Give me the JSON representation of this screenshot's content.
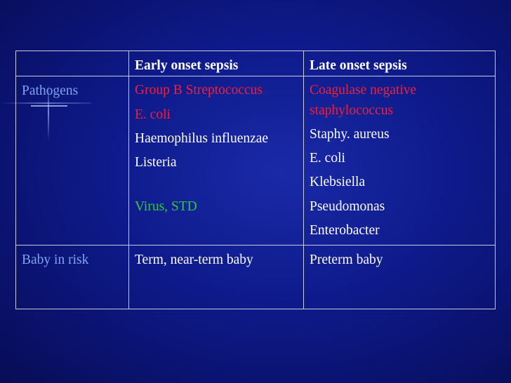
{
  "table": {
    "header": [
      "",
      "Early onset sepsis",
      "Late onset sepsis"
    ],
    "pathogens": {
      "label": "Pathogens",
      "early": [
        {
          "text": "Group B Streptococcus",
          "color": "#f0203a"
        },
        {
          "text": "E. coli",
          "color": "#f0203a"
        },
        {
          "text": "Haemophilus influenzae",
          "color": "#ffffff"
        },
        {
          "text": "Listeria",
          "color": "#ffffff"
        },
        {
          "text": "Virus, STD",
          "color": "#2fc83a"
        }
      ],
      "late": [
        {
          "text": "Coagulase negative staphylococcus",
          "color": "#f0203a"
        },
        {
          "text": "Staphy. aureus",
          "color": "#ffffff"
        },
        {
          "text": "E. coli",
          "color": "#ffffff"
        },
        {
          "text": "Klebsiella",
          "color": "#ffffff"
        },
        {
          "text": "Pseudomonas",
          "color": "#ffffff"
        },
        {
          "text": "Enterobacter",
          "color": "#ffffff"
        }
      ]
    },
    "baby_in_risk": {
      "label": "Baby in risk",
      "early": "Term, near-term baby",
      "late": "Preterm baby"
    }
  }
}
